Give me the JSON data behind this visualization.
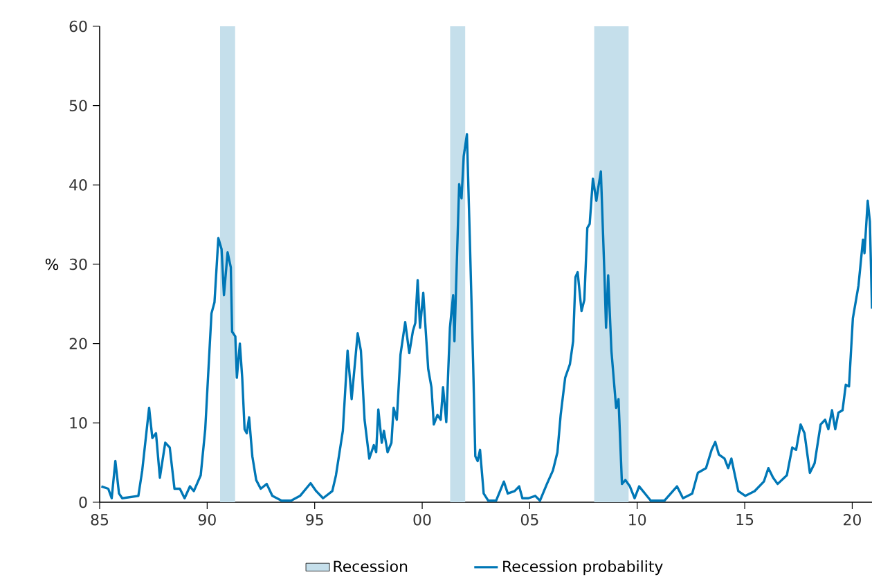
{
  "chart_data": {
    "type": "line",
    "ylabel": "%",
    "x": [
      1985.08,
      1985.4,
      1985.56,
      1985.73,
      1985.9,
      1986.05,
      1986.8,
      1986.98,
      1987.3,
      1987.45,
      1987.62,
      1987.8,
      1988.05,
      1988.26,
      1988.48,
      1988.73,
      1988.95,
      1989.2,
      1989.38,
      1989.7,
      1989.91,
      1990.2,
      1990.34,
      1990.52,
      1990.67,
      1990.78,
      1990.95,
      1991.1,
      1991.16,
      1991.31,
      1991.38,
      1991.52,
      1991.63,
      1991.74,
      1991.84,
      1991.95,
      1992.1,
      1992.28,
      1992.49,
      1992.77,
      1993.03,
      1993.46,
      1993.9,
      1994.32,
      1994.81,
      1995.07,
      1995.39,
      1995.82,
      1995.99,
      1996.31,
      1996.53,
      1996.72,
      1997.0,
      1997.15,
      1997.32,
      1997.54,
      1997.75,
      1997.86,
      1997.96,
      1998.12,
      1998.22,
      1998.39,
      1998.57,
      1998.67,
      1998.82,
      1998.99,
      1999.21,
      1999.4,
      1999.57,
      1999.68,
      1999.79,
      1999.9,
      2000.05,
      2000.28,
      2000.43,
      2000.54,
      2000.71,
      2000.86,
      2000.97,
      2001.12,
      2001.29,
      2001.44,
      2001.5,
      2001.72,
      2001.83,
      2001.93,
      2002.08,
      2002.21,
      2002.37,
      2002.47,
      2002.58,
      2002.69,
      2002.86,
      2003.07,
      2003.44,
      2003.8,
      2003.98,
      2004.3,
      2004.51,
      2004.66,
      2004.94,
      2005.26,
      2005.48,
      2005.8,
      2006.08,
      2006.29,
      2006.44,
      2006.65,
      2006.87,
      2007.02,
      2007.13,
      2007.23,
      2007.41,
      2007.54,
      2007.68,
      2007.79,
      2007.94,
      2008.1,
      2008.18,
      2008.31,
      2008.48,
      2008.55,
      2008.65,
      2008.8,
      2009.02,
      2009.13,
      2009.29,
      2009.45,
      2009.66,
      2009.88,
      2010.09,
      2010.63,
      2011.27,
      2011.85,
      2012.13,
      2012.56,
      2012.82,
      2013.2,
      2013.46,
      2013.63,
      2013.8,
      2014.06,
      2014.23,
      2014.38,
      2014.7,
      2015.03,
      2015.46,
      2015.89,
      2016.1,
      2016.32,
      2016.53,
      2016.96,
      2017.21,
      2017.39,
      2017.6,
      2017.78,
      2018.03,
      2018.25,
      2018.53,
      2018.74,
      2018.89,
      2019.06,
      2019.21,
      2019.36,
      2019.55,
      2019.7,
      2019.85,
      2020.03,
      2020.29,
      2020.5,
      2020.57,
      2020.72,
      2020.82,
      2020.92
    ],
    "series": [
      {
        "name": "Recession probability",
        "color": "#0077b6",
        "values": [
          2.0,
          1.7,
          0.5,
          5.2,
          1.1,
          0.5,
          0.8,
          4.0,
          11.9,
          8.1,
          8.7,
          3.1,
          7.5,
          6.9,
          1.7,
          1.7,
          0.5,
          2.0,
          1.4,
          3.4,
          9.2,
          23.8,
          25.2,
          33.3,
          31.9,
          26.1,
          31.5,
          29.6,
          21.5,
          20.9,
          15.7,
          20.0,
          15.7,
          9.2,
          8.7,
          10.7,
          5.8,
          2.8,
          1.7,
          2.3,
          0.8,
          0.2,
          0.2,
          0.8,
          2.4,
          1.4,
          0.5,
          1.4,
          3.4,
          9.0,
          19.1,
          13.0,
          21.3,
          19.1,
          10.4,
          5.5,
          7.2,
          6.3,
          11.7,
          7.5,
          9.0,
          6.3,
          7.5,
          11.9,
          10.4,
          18.6,
          22.7,
          18.8,
          21.6,
          22.6,
          28.0,
          22.0,
          26.4,
          16.8,
          14.5,
          9.8,
          11.0,
          10.4,
          14.5,
          10.1,
          22.0,
          26.1,
          20.3,
          40.1,
          38.3,
          43.6,
          46.4,
          33.7,
          17.4,
          5.8,
          5.2,
          6.6,
          1.1,
          0.2,
          0.2,
          2.6,
          1.1,
          1.4,
          2.0,
          0.5,
          0.5,
          0.8,
          0.2,
          2.3,
          4.0,
          6.3,
          11.0,
          15.7,
          17.4,
          20.3,
          28.4,
          29.0,
          24.1,
          25.5,
          34.6,
          35.1,
          40.8,
          38.0,
          39.5,
          41.7,
          28.4,
          22.0,
          28.6,
          19.1,
          11.9,
          13.0,
          2.3,
          2.8,
          2.0,
          0.5,
          2.0,
          0.2,
          0.2,
          2.0,
          0.5,
          1.1,
          3.7,
          4.3,
          6.6,
          7.6,
          6.0,
          5.5,
          4.3,
          5.5,
          1.4,
          0.8,
          1.4,
          2.6,
          4.3,
          3.1,
          2.3,
          3.4,
          6.9,
          6.6,
          9.8,
          8.7,
          3.7,
          4.9,
          9.8,
          10.4,
          9.2,
          11.6,
          9.2,
          11.3,
          11.6,
          14.8,
          14.6,
          23.2,
          27.3,
          33.1,
          31.4,
          38.0,
          35.4,
          24.4
        ]
      }
    ],
    "xlim": [
      1985,
      2020.92
    ],
    "ylim": [
      0,
      60
    ],
    "xticks": [
      {
        "value": 1985,
        "label": "85"
      },
      {
        "value": 1990,
        "label": "90"
      },
      {
        "value": 1995,
        "label": "95"
      },
      {
        "value": 2000,
        "label": "00"
      },
      {
        "value": 2005,
        "label": "05"
      },
      {
        "value": 2010,
        "label": "10"
      },
      {
        "value": 2015,
        "label": "15"
      },
      {
        "value": 2020,
        "label": "20"
      }
    ],
    "yticks": [
      0,
      10,
      20,
      30,
      40,
      50,
      60
    ],
    "bands": [
      {
        "axis": "x",
        "from": 1990.6,
        "to": 1991.3,
        "label": "Recession",
        "color": "#c5dfeb"
      },
      {
        "axis": "x",
        "from": 2001.3,
        "to": 2002.0,
        "color": "#c5dfeb"
      },
      {
        "axis": "x",
        "from": 2008.0,
        "to": 2009.6,
        "color": "#c5dfeb"
      }
    ],
    "legend": "bottom",
    "grid": false,
    "marker": "none",
    "line_style": "solid"
  }
}
